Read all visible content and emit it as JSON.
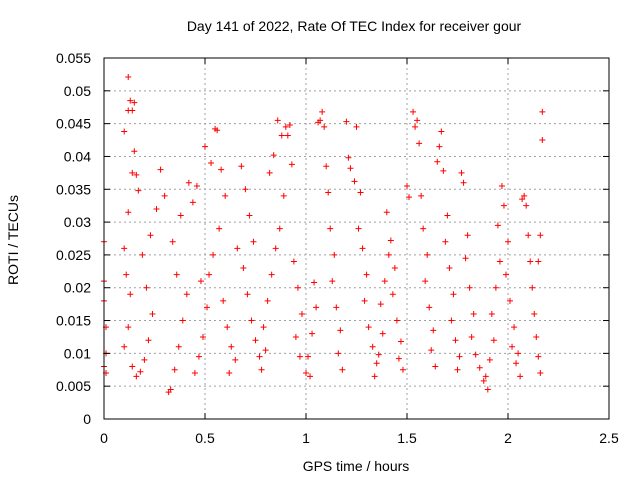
{
  "chart_data": {
    "type": "scatter",
    "title": "Day 141 of 2022, Rate Of TEC Index for receiver gour",
    "xlabel": "GPS time / hours",
    "ylabel": "ROTI / TECUs",
    "xlim": [
      0,
      2.5
    ],
    "ylim": [
      0,
      0.055
    ],
    "xticks": [
      0,
      0.5,
      1,
      1.5,
      2,
      2.5
    ],
    "xtick_labels": [
      "0",
      "0.5",
      "1",
      "1.5",
      "2",
      "2.5"
    ],
    "yticks": [
      0,
      0.005,
      0.01,
      0.015,
      0.02,
      0.025,
      0.03,
      0.035,
      0.04,
      0.045,
      0.05,
      0.055
    ],
    "ytick_labels": [
      "0",
      "0.005",
      "0.01",
      "0.015",
      "0.02",
      "0.025",
      "0.03",
      "0.035",
      "0.04",
      "0.045",
      "0.05",
      "0.055"
    ],
    "grid": true,
    "marker": "+",
    "series": [
      {
        "name": "ROTI",
        "color": "#ff0000",
        "points": [
          [
            0.0,
            0.027
          ],
          [
            0.0,
            0.021
          ],
          [
            0.0,
            0.018
          ],
          [
            0.01,
            0.014
          ],
          [
            0.01,
            0.01
          ],
          [
            0.0,
            0.008
          ],
          [
            0.01,
            0.007
          ],
          [
            0.1,
            0.0438
          ],
          [
            0.12,
            0.0521
          ],
          [
            0.12,
            0.047
          ],
          [
            0.13,
            0.0485
          ],
          [
            0.15,
            0.0482
          ],
          [
            0.14,
            0.047
          ],
          [
            0.15,
            0.0408
          ],
          [
            0.14,
            0.0375
          ],
          [
            0.16,
            0.0372
          ],
          [
            0.17,
            0.0348
          ],
          [
            0.12,
            0.0315
          ],
          [
            0.1,
            0.026
          ],
          [
            0.11,
            0.022
          ],
          [
            0.13,
            0.019
          ],
          [
            0.12,
            0.014
          ],
          [
            0.1,
            0.011
          ],
          [
            0.14,
            0.008
          ],
          [
            0.16,
            0.0065
          ],
          [
            0.18,
            0.0072
          ],
          [
            0.2,
            0.009
          ],
          [
            0.22,
            0.012
          ],
          [
            0.24,
            0.016
          ],
          [
            0.21,
            0.02
          ],
          [
            0.19,
            0.025
          ],
          [
            0.23,
            0.028
          ],
          [
            0.26,
            0.032
          ],
          [
            0.28,
            0.038
          ],
          [
            0.3,
            0.034
          ],
          [
            0.32,
            0.0041
          ],
          [
            0.33,
            0.0045
          ],
          [
            0.35,
            0.0075
          ],
          [
            0.37,
            0.011
          ],
          [
            0.39,
            0.015
          ],
          [
            0.41,
            0.019
          ],
          [
            0.36,
            0.022
          ],
          [
            0.34,
            0.027
          ],
          [
            0.38,
            0.031
          ],
          [
            0.42,
            0.036
          ],
          [
            0.44,
            0.033
          ],
          [
            0.45,
            0.007
          ],
          [
            0.47,
            0.0095
          ],
          [
            0.49,
            0.0125
          ],
          [
            0.51,
            0.017
          ],
          [
            0.48,
            0.021
          ],
          [
            0.46,
            0.0355
          ],
          [
            0.5,
            0.0415
          ],
          [
            0.53,
            0.039
          ],
          [
            0.55,
            0.0442
          ],
          [
            0.56,
            0.044
          ],
          [
            0.58,
            0.038
          ],
          [
            0.6,
            0.034
          ],
          [
            0.57,
            0.029
          ],
          [
            0.54,
            0.025
          ],
          [
            0.52,
            0.022
          ],
          [
            0.59,
            0.018
          ],
          [
            0.61,
            0.014
          ],
          [
            0.63,
            0.011
          ],
          [
            0.65,
            0.009
          ],
          [
            0.62,
            0.007
          ],
          [
            0.66,
            0.026
          ],
          [
            0.68,
            0.0385
          ],
          [
            0.7,
            0.035
          ],
          [
            0.72,
            0.031
          ],
          [
            0.74,
            0.027
          ],
          [
            0.69,
            0.023
          ],
          [
            0.71,
            0.019
          ],
          [
            0.73,
            0.015
          ],
          [
            0.75,
            0.012
          ],
          [
            0.77,
            0.0095
          ],
          [
            0.78,
            0.0075
          ],
          [
            0.8,
            0.0105
          ],
          [
            0.79,
            0.014
          ],
          [
            0.81,
            0.018
          ],
          [
            0.83,
            0.022
          ],
          [
            0.85,
            0.026
          ],
          [
            0.82,
            0.0375
          ],
          [
            0.84,
            0.0402
          ],
          [
            0.86,
            0.0455
          ],
          [
            0.88,
            0.0432
          ],
          [
            0.9,
            0.0445
          ],
          [
            0.92,
            0.0448
          ],
          [
            0.91,
            0.0432
          ],
          [
            0.93,
            0.0388
          ],
          [
            0.89,
            0.034
          ],
          [
            0.87,
            0.029
          ],
          [
            0.94,
            0.024
          ],
          [
            0.96,
            0.02
          ],
          [
            0.98,
            0.016
          ],
          [
            0.95,
            0.0125
          ],
          [
            0.97,
            0.0095
          ],
          [
            1.0,
            0.007
          ],
          [
            1.02,
            0.0065
          ],
          [
            1.01,
            0.0095
          ],
          [
            1.03,
            0.013
          ],
          [
            1.05,
            0.017
          ],
          [
            1.04,
            0.0208
          ],
          [
            1.06,
            0.0452
          ],
          [
            1.07,
            0.0455
          ],
          [
            1.08,
            0.0468
          ],
          [
            1.09,
            0.0445
          ],
          [
            1.1,
            0.0385
          ],
          [
            1.11,
            0.0345
          ],
          [
            1.12,
            0.029
          ],
          [
            1.14,
            0.025
          ],
          [
            1.13,
            0.021
          ],
          [
            1.15,
            0.017
          ],
          [
            1.17,
            0.0135
          ],
          [
            1.16,
            0.01
          ],
          [
            1.18,
            0.0075
          ],
          [
            1.2,
            0.0453
          ],
          [
            1.21,
            0.0398
          ],
          [
            1.22,
            0.0382
          ],
          [
            1.24,
            0.0362
          ],
          [
            1.25,
            0.0445
          ],
          [
            1.27,
            0.0345
          ],
          [
            1.26,
            0.029
          ],
          [
            1.28,
            0.026
          ],
          [
            1.3,
            0.022
          ],
          [
            1.29,
            0.018
          ],
          [
            1.31,
            0.014
          ],
          [
            1.33,
            0.011
          ],
          [
            1.35,
            0.0085
          ],
          [
            1.34,
            0.0065
          ],
          [
            1.36,
            0.0098
          ],
          [
            1.38,
            0.013
          ],
          [
            1.37,
            0.0175
          ],
          [
            1.39,
            0.021
          ],
          [
            1.41,
            0.025
          ],
          [
            1.4,
            0.0315
          ],
          [
            1.42,
            0.0272
          ],
          [
            1.44,
            0.023
          ],
          [
            1.43,
            0.019
          ],
          [
            1.45,
            0.015
          ],
          [
            1.47,
            0.0118
          ],
          [
            1.46,
            0.0092
          ],
          [
            1.48,
            0.0075
          ],
          [
            1.5,
            0.0355
          ],
          [
            1.51,
            0.0338
          ],
          [
            1.53,
            0.0468
          ],
          [
            1.54,
            0.0445
          ],
          [
            1.55,
            0.0455
          ],
          [
            1.56,
            0.042
          ],
          [
            1.57,
            0.034
          ],
          [
            1.58,
            0.029
          ],
          [
            1.6,
            0.025
          ],
          [
            1.59,
            0.021
          ],
          [
            1.61,
            0.017
          ],
          [
            1.63,
            0.0135
          ],
          [
            1.62,
            0.0105
          ],
          [
            1.64,
            0.008
          ],
          [
            1.66,
            0.0415
          ],
          [
            1.65,
            0.0392
          ],
          [
            1.67,
            0.0438
          ],
          [
            1.68,
            0.0378
          ],
          [
            1.7,
            0.031
          ],
          [
            1.69,
            0.027
          ],
          [
            1.71,
            0.023
          ],
          [
            1.73,
            0.019
          ],
          [
            1.72,
            0.015
          ],
          [
            1.74,
            0.012
          ],
          [
            1.76,
            0.0095
          ],
          [
            1.75,
            0.0075
          ],
          [
            1.77,
            0.0375
          ],
          [
            1.78,
            0.036
          ],
          [
            1.8,
            0.028
          ],
          [
            1.79,
            0.0245
          ],
          [
            1.81,
            0.02
          ],
          [
            1.83,
            0.016
          ],
          [
            1.82,
            0.0125
          ],
          [
            1.84,
            0.0098
          ],
          [
            1.86,
            0.0078
          ],
          [
            1.88,
            0.0058
          ],
          [
            1.9,
            0.0045
          ],
          [
            1.89,
            0.0065
          ],
          [
            1.91,
            0.009
          ],
          [
            1.93,
            0.012
          ],
          [
            1.92,
            0.016
          ],
          [
            1.94,
            0.02
          ],
          [
            1.96,
            0.024
          ],
          [
            1.95,
            0.0295
          ],
          [
            1.97,
            0.0355
          ],
          [
            1.98,
            0.0325
          ],
          [
            2.0,
            0.027
          ],
          [
            1.99,
            0.022
          ],
          [
            2.01,
            0.018
          ],
          [
            2.03,
            0.014
          ],
          [
            2.02,
            0.011
          ],
          [
            2.04,
            0.0085
          ],
          [
            2.06,
            0.0065
          ],
          [
            2.05,
            0.01
          ],
          [
            2.07,
            0.0335
          ],
          [
            2.08,
            0.034
          ],
          [
            2.09,
            0.0325
          ],
          [
            2.1,
            0.028
          ],
          [
            2.11,
            0.024
          ],
          [
            2.12,
            0.02
          ],
          [
            2.13,
            0.016
          ],
          [
            2.14,
            0.0125
          ],
          [
            2.15,
            0.0095
          ],
          [
            2.16,
            0.007
          ],
          [
            2.17,
            0.0468
          ],
          [
            2.17,
            0.0425
          ],
          [
            2.16,
            0.028
          ],
          [
            2.15,
            0.024
          ]
        ]
      }
    ]
  }
}
